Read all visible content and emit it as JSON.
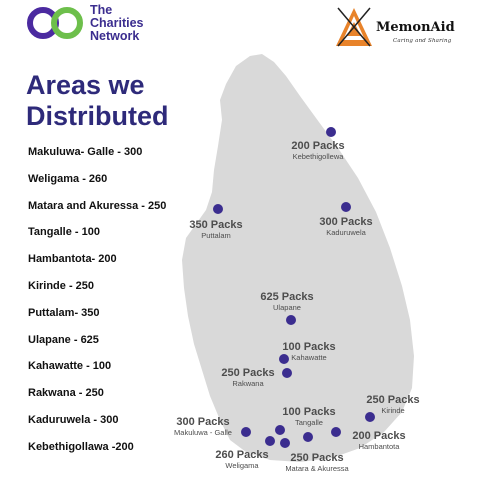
{
  "header": {
    "left_logo_lines": [
      "The",
      "Charities",
      "Network"
    ],
    "right_logo_name": "MemonAid",
    "right_logo_tagline": "Caring and Sharing"
  },
  "heading_lines": [
    "Areas we",
    "Distributed"
  ],
  "distribution_list": [
    "Makuluwa- Galle - 300",
    "Weligama - 260",
    "Matara and Akuressa - 250",
    "Tangalle - 100",
    "Hambantota- 200",
    "Kirinde - 250",
    "Puttalam- 350",
    "Ulapane - 625",
    "Kahawatte - 100",
    "Rakwana - 250",
    "Kaduruwela - 300",
    "Kebethigollawa -200"
  ],
  "map_labels": [
    {
      "packs": "200 Packs",
      "place": "Kebethigollewa"
    },
    {
      "packs": "350 Packs",
      "place": "Puttalam"
    },
    {
      "packs": "300 Packs",
      "place": "Kaduruwela"
    },
    {
      "packs": "625 Packs",
      "place": "Ulapane"
    },
    {
      "packs": "100 Packs",
      "place": "Kahawatte"
    },
    {
      "packs": "250 Packs",
      "place": "Rakwana"
    },
    {
      "packs": "250 Packs",
      "place": "Kirinde"
    },
    {
      "packs": "100 Packs",
      "place": "Tangalle"
    },
    {
      "packs": "300 Packs",
      "place": "Makuluwa - Galle"
    },
    {
      "packs": "200 Packs",
      "place": "Hambantota"
    },
    {
      "packs": "260 Packs",
      "place": "Weligama"
    },
    {
      "packs": "250 Packs",
      "place": "Matara & Akuressa"
    }
  ],
  "colors": {
    "heading": "#2e2a7a",
    "marker": "#3b2d8f",
    "island": "#d9d9d9",
    "logo_green": "#6dbf4b",
    "logo_purple": "#4b2aa0",
    "memon_orange": "#e8832a"
  }
}
